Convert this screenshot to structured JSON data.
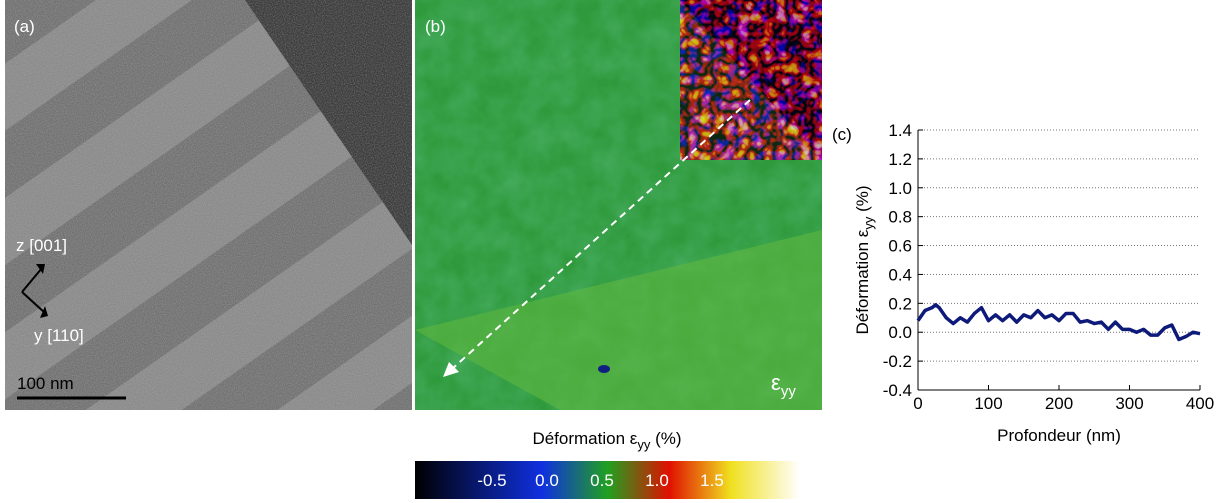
{
  "panel_a": {
    "label": "(a)",
    "axis_z": "z [001]",
    "axis_y": "y [110]",
    "scale_bar": "100 nm"
  },
  "panel_b": {
    "label": "(b)",
    "symbol": "ε",
    "symbol_sub": "yy"
  },
  "colorbar": {
    "title": "Déformation ε",
    "title_sub": "yy",
    "title_tail": " (%)",
    "lim": [
      -1.2,
      2.3
    ],
    "ticks": [
      -0.5,
      {
        "value": 0,
        "label": "0.0"
      },
      0.5,
      {
        "value": 1,
        "label": "1.0"
      },
      1.5
    ]
  },
  "chart_data": {
    "type": "line",
    "panel_label": "(c)",
    "xlabel": "Profondeur (nm)",
    "ylabel": "Déformation ε",
    "ylabel_sub": "yy",
    "ylabel_tail": " (%)",
    "x": [
      0,
      10,
      20,
      25,
      30,
      40,
      50,
      60,
      70,
      80,
      90,
      100,
      110,
      120,
      130,
      140,
      150,
      160,
      170,
      180,
      190,
      200,
      210,
      220,
      230,
      240,
      250,
      260,
      270,
      280,
      290,
      300,
      310,
      320,
      330,
      340,
      350,
      360,
      370,
      380,
      390,
      400
    ],
    "values": [
      0.08,
      0.15,
      0.17,
      0.19,
      0.17,
      0.1,
      0.06,
      0.1,
      0.07,
      0.13,
      0.17,
      0.08,
      0.12,
      0.08,
      0.12,
      0.07,
      0.12,
      0.1,
      0.15,
      0.1,
      0.12,
      0.08,
      0.13,
      0.13,
      0.07,
      0.08,
      0.06,
      0.07,
      0.02,
      0.07,
      0.02,
      0.02,
      0,
      0.02,
      -0.02,
      -0.02,
      0.03,
      0.05,
      -0.05,
      -0.03,
      0,
      -0.01
    ],
    "color": "#0d1a7a",
    "xlim": [
      0,
      400
    ],
    "xticks": [
      0,
      100,
      200,
      300,
      400
    ],
    "ylim": [
      -0.4,
      1.4
    ],
    "yticks": [
      -0.4,
      -0.2,
      {
        "value": 0,
        "label": "0.0"
      },
      0.2,
      0.4,
      0.6,
      0.8,
      {
        "value": 1,
        "label": "1.0"
      },
      1.2,
      1.4
    ],
    "grid": true
  }
}
